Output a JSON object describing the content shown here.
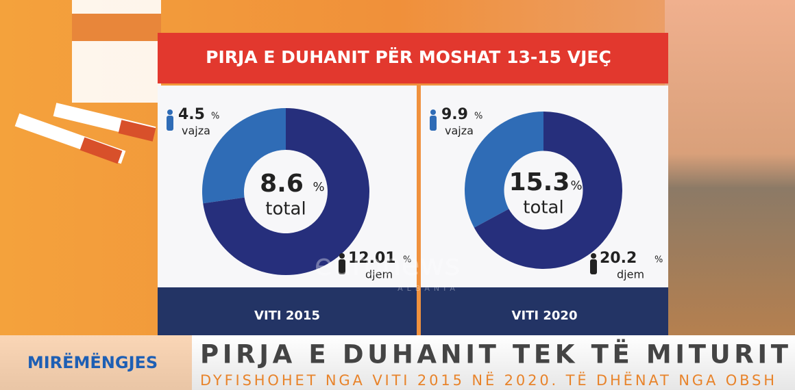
{
  "title": "PIRJA E DUHANIT PËR MOSHAT 13-15 VJEÇ",
  "chart_data": [
    {
      "type": "donut",
      "label": "VITI 2015",
      "total": 8.6,
      "total_label": "total",
      "unit": "%",
      "categories": [
        "vajza",
        "djem"
      ],
      "values": [
        4.5,
        12.01
      ],
      "colors": [
        "#2f6cb6",
        "#262f7c"
      ]
    },
    {
      "type": "donut",
      "label": "VITI 2020",
      "total": 15.3,
      "total_label": "total",
      "unit": "%",
      "categories": [
        "vajza",
        "djem"
      ],
      "values": [
        9.9,
        20.2
      ],
      "colors": [
        "#2f6cb6",
        "#262f7c"
      ]
    }
  ],
  "watermark": "euronews",
  "watermark_sub": "ALBANIA",
  "logo": "MIRËMËNGJES",
  "headline": "PIRJA E DUHANIT TEK TË MITURIT",
  "subheadline": "DYFISHOHET NGA VITI 2015 NË 2020. TË DHËNAT NGA OBSH"
}
